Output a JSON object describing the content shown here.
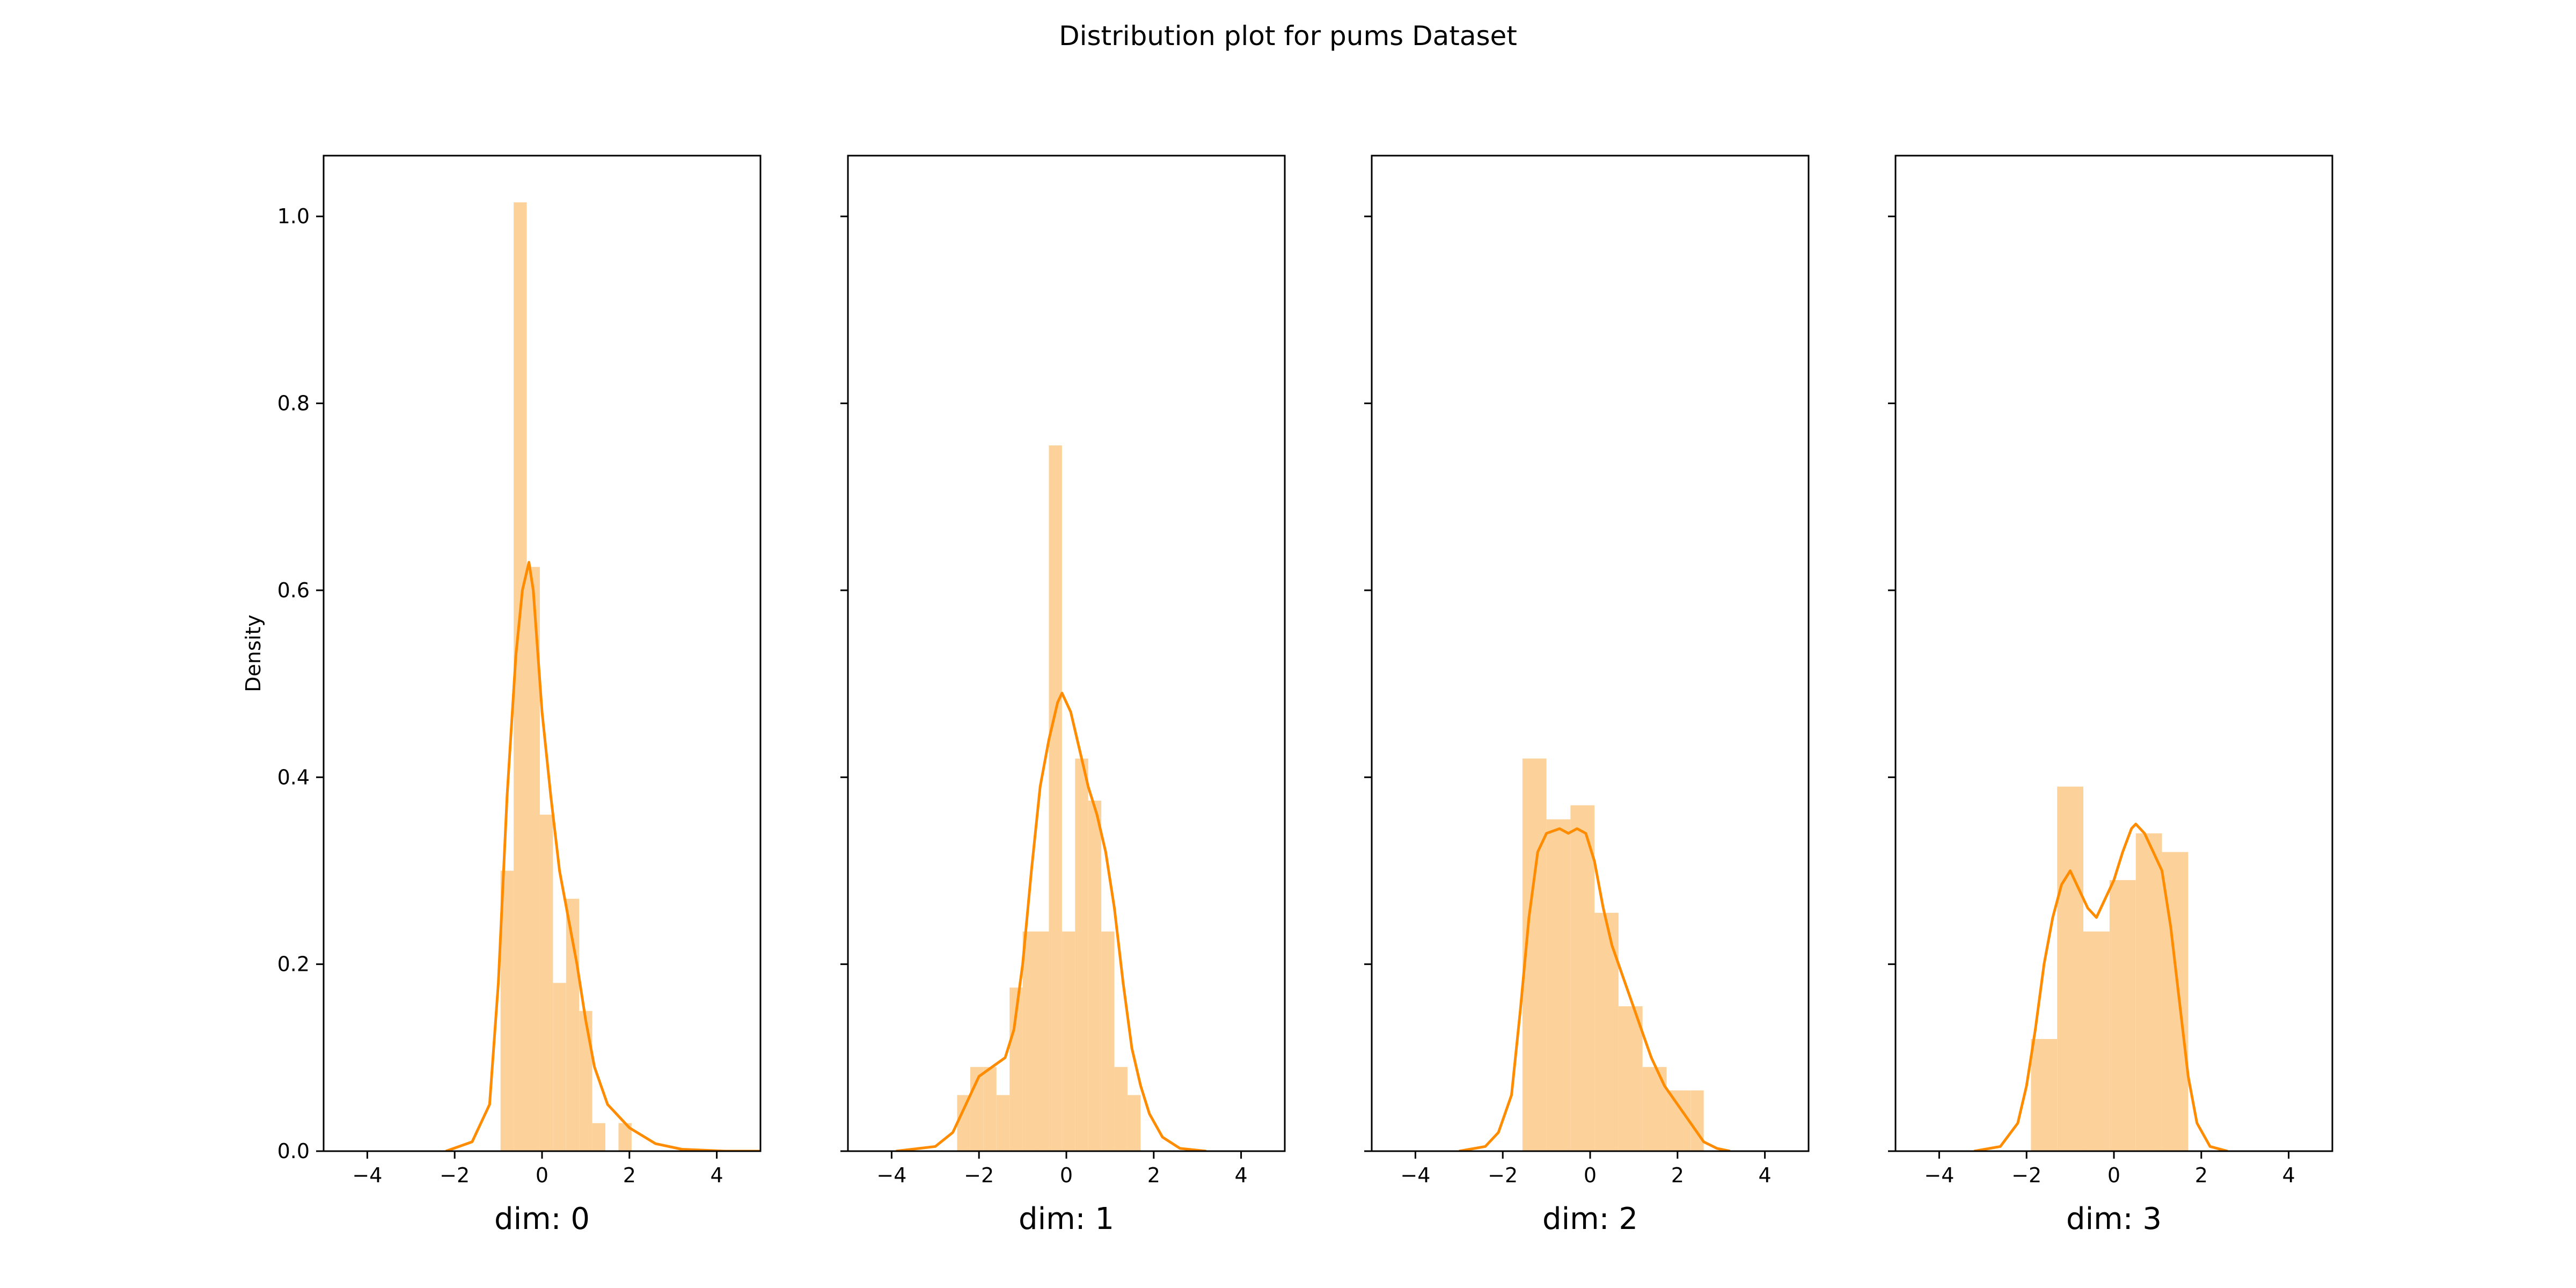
{
  "title": "Distribution plot for pums Dataset",
  "colors": {
    "bar": "#fdd29a",
    "line": "#ff8c00",
    "axis": "#000000"
  },
  "chart_data": [
    {
      "type": "bar",
      "xlabel": "dim: 0",
      "ylabel": "Density",
      "xlim": [
        -5,
        5
      ],
      "ylim": [
        0,
        1.065
      ],
      "x_ticks": [
        -4,
        -2,
        0,
        2,
        4
      ],
      "y_ticks": [
        0.0,
        0.2,
        0.4,
        0.6,
        0.8,
        1.0
      ],
      "x_tick_labels": [
        "−4",
        "−2",
        "0",
        "2",
        "4"
      ],
      "y_tick_labels": [
        "0.0",
        "0.2",
        "0.4",
        "0.6",
        "0.8",
        "1.0"
      ],
      "bin_edges": [
        -0.95,
        -0.65,
        -0.35,
        -0.05,
        0.25,
        0.55,
        0.85,
        1.15,
        1.45,
        1.75,
        2.05,
        2.35
      ],
      "values": [
        0.3,
        1.015,
        0.625,
        0.36,
        0.18,
        0.27,
        0.15,
        0.03,
        0.0,
        0.03,
        0.0
      ],
      "kde": [
        [
          -2.2,
          0.0
        ],
        [
          -1.6,
          0.01
        ],
        [
          -1.2,
          0.05
        ],
        [
          -1.0,
          0.18
        ],
        [
          -0.8,
          0.38
        ],
        [
          -0.6,
          0.53
        ],
        [
          -0.45,
          0.6
        ],
        [
          -0.3,
          0.63
        ],
        [
          -0.2,
          0.6
        ],
        [
          0.0,
          0.47
        ],
        [
          0.2,
          0.38
        ],
        [
          0.4,
          0.3
        ],
        [
          0.6,
          0.25
        ],
        [
          0.8,
          0.2
        ],
        [
          1.0,
          0.14
        ],
        [
          1.2,
          0.09
        ],
        [
          1.5,
          0.05
        ],
        [
          2.0,
          0.025
        ],
        [
          2.6,
          0.008
        ],
        [
          3.2,
          0.002
        ],
        [
          4.2,
          0.0
        ],
        [
          5.0,
          0.0
        ]
      ]
    },
    {
      "type": "bar",
      "xlabel": "dim: 1",
      "xlim": [
        -5,
        5
      ],
      "ylim": [
        0,
        1.065
      ],
      "x_ticks": [
        -4,
        -2,
        0,
        2,
        4
      ],
      "y_ticks": [
        0.0,
        0.2,
        0.4,
        0.6,
        0.8,
        1.0
      ],
      "x_tick_labels": [
        "−4",
        "−2",
        "0",
        "2",
        "4"
      ],
      "bin_edges": [
        -2.5,
        -2.2,
        -1.9,
        -1.6,
        -1.3,
        -1.0,
        -0.7,
        -0.4,
        -0.1,
        0.2,
        0.5,
        0.8,
        1.1,
        1.4,
        1.7,
        2.0
      ],
      "values": [
        0.06,
        0.09,
        0.09,
        0.06,
        0.175,
        0.235,
        0.235,
        0.755,
        0.235,
        0.42,
        0.375,
        0.235,
        0.09,
        0.06,
        0.0
      ],
      "kde": [
        [
          -3.9,
          0.0
        ],
        [
          -3.0,
          0.005
        ],
        [
          -2.6,
          0.02
        ],
        [
          -2.3,
          0.05
        ],
        [
          -2.0,
          0.08
        ],
        [
          -1.7,
          0.09
        ],
        [
          -1.4,
          0.1
        ],
        [
          -1.2,
          0.13
        ],
        [
          -1.0,
          0.2
        ],
        [
          -0.8,
          0.3
        ],
        [
          -0.6,
          0.39
        ],
        [
          -0.4,
          0.44
        ],
        [
          -0.2,
          0.48
        ],
        [
          -0.1,
          0.49
        ],
        [
          0.1,
          0.47
        ],
        [
          0.3,
          0.43
        ],
        [
          0.5,
          0.39
        ],
        [
          0.7,
          0.36
        ],
        [
          0.9,
          0.32
        ],
        [
          1.1,
          0.26
        ],
        [
          1.3,
          0.18
        ],
        [
          1.5,
          0.11
        ],
        [
          1.7,
          0.07
        ],
        [
          1.9,
          0.04
        ],
        [
          2.2,
          0.015
        ],
        [
          2.6,
          0.003
        ],
        [
          3.2,
          0.0
        ]
      ]
    },
    {
      "type": "bar",
      "xlabel": "dim: 2",
      "xlim": [
        -5,
        5
      ],
      "ylim": [
        0,
        1.065
      ],
      "x_ticks": [
        -4,
        -2,
        0,
        2,
        4
      ],
      "y_ticks": [
        0.0,
        0.2,
        0.4,
        0.6,
        0.8,
        1.0
      ],
      "x_tick_labels": [
        "−4",
        "−2",
        "0",
        "2",
        "4"
      ],
      "bin_edges": [
        -1.55,
        -1.0,
        -0.45,
        0.1,
        0.65,
        1.2,
        1.75,
        2.3,
        2.6
      ],
      "values": [
        0.42,
        0.355,
        0.37,
        0.255,
        0.155,
        0.09,
        0.065,
        0.065
      ],
      "kde": [
        [
          -3.0,
          0.0
        ],
        [
          -2.4,
          0.005
        ],
        [
          -2.1,
          0.02
        ],
        [
          -1.8,
          0.06
        ],
        [
          -1.6,
          0.15
        ],
        [
          -1.4,
          0.25
        ],
        [
          -1.2,
          0.32
        ],
        [
          -1.0,
          0.34
        ],
        [
          -0.7,
          0.345
        ],
        [
          -0.5,
          0.34
        ],
        [
          -0.3,
          0.345
        ],
        [
          -0.1,
          0.34
        ],
        [
          0.1,
          0.31
        ],
        [
          0.3,
          0.26
        ],
        [
          0.5,
          0.22
        ],
        [
          0.8,
          0.18
        ],
        [
          1.1,
          0.14
        ],
        [
          1.4,
          0.1
        ],
        [
          1.7,
          0.07
        ],
        [
          2.0,
          0.05
        ],
        [
          2.3,
          0.03
        ],
        [
          2.6,
          0.01
        ],
        [
          2.9,
          0.003
        ],
        [
          3.2,
          0.0
        ]
      ]
    },
    {
      "type": "bar",
      "xlabel": "dim: 3",
      "xlim": [
        -5,
        5
      ],
      "ylim": [
        0,
        1.065
      ],
      "x_ticks": [
        -4,
        -2,
        0,
        2,
        4
      ],
      "y_ticks": [
        0.0,
        0.2,
        0.4,
        0.6,
        0.8,
        1.0
      ],
      "x_tick_labels": [
        "−4",
        "−2",
        "0",
        "2",
        "4"
      ],
      "bin_edges": [
        -1.9,
        -1.3,
        -0.7,
        -0.1,
        0.5,
        1.1,
        1.7
      ],
      "values": [
        0.12,
        0.39,
        0.235,
        0.29,
        0.34,
        0.32
      ],
      "kde": [
        [
          -3.2,
          0.0
        ],
        [
          -2.6,
          0.005
        ],
        [
          -2.2,
          0.03
        ],
        [
          -2.0,
          0.07
        ],
        [
          -1.8,
          0.13
        ],
        [
          -1.6,
          0.2
        ],
        [
          -1.4,
          0.25
        ],
        [
          -1.2,
          0.285
        ],
        [
          -1.0,
          0.3
        ],
        [
          -0.8,
          0.28
        ],
        [
          -0.6,
          0.26
        ],
        [
          -0.4,
          0.25
        ],
        [
          -0.2,
          0.27
        ],
        [
          0.0,
          0.29
        ],
        [
          0.2,
          0.32
        ],
        [
          0.4,
          0.345
        ],
        [
          0.5,
          0.35
        ],
        [
          0.7,
          0.34
        ],
        [
          0.9,
          0.32
        ],
        [
          1.1,
          0.3
        ],
        [
          1.3,
          0.24
        ],
        [
          1.5,
          0.16
        ],
        [
          1.7,
          0.08
        ],
        [
          1.9,
          0.03
        ],
        [
          2.2,
          0.005
        ],
        [
          2.6,
          0.0
        ]
      ]
    }
  ]
}
